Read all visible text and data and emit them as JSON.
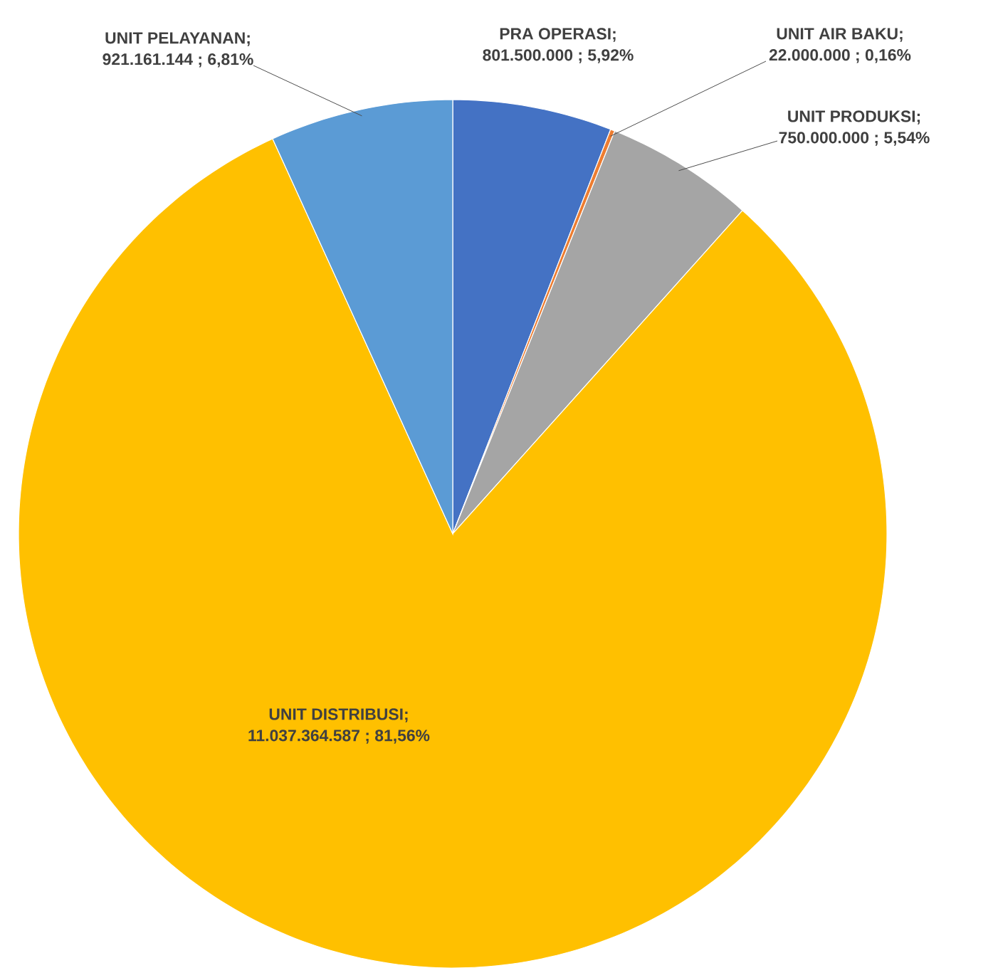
{
  "chart_data": {
    "type": "pie",
    "categories": [
      "PRA OPERASI",
      "UNIT AIR BAKU",
      "UNIT PRODUKSI",
      "UNIT DISTRIBUSI",
      "UNIT PELAYANAN"
    ],
    "values": [
      801500000,
      22000000,
      750000000,
      11037364587,
      921161144
    ],
    "value_labels": [
      "; 801.500.000  ; 5,92%",
      "; 22.000.000  ; 0,16%",
      "; 750.000.000  ; 5,54%",
      "; 11.037.364.587  ; 81,56%",
      "; 921.161.144  ; 6,81%"
    ],
    "colors": [
      "#4472c4",
      "#ed7d31",
      "#a5a5a5",
      "#ffc000",
      "#5b9bd5"
    ]
  }
}
